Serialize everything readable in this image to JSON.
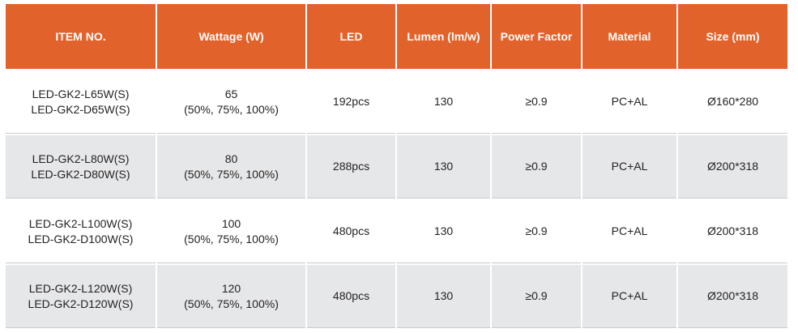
{
  "table": {
    "header": [
      "ITEM NO.",
      "Wattage (W)",
      "LED",
      "Lumen (lm/w)",
      "Power Factor",
      "Material",
      "Size (mm)"
    ],
    "rows": [
      [
        [
          "LED-GK2-L65W(S)",
          "LED-GK2-D65W(S)"
        ],
        [
          "65",
          "(50%, 75%, 100%)"
        ],
        [
          "192pcs"
        ],
        [
          "130"
        ],
        [
          "≥0.9"
        ],
        [
          "PC+AL"
        ],
        [
          "Ø160*280"
        ]
      ],
      [
        [
          "LED-GK2-L80W(S)",
          "LED-GK2-D80W(S)"
        ],
        [
          "80",
          "(50%, 75%, 100%)"
        ],
        [
          "288pcs"
        ],
        [
          "130"
        ],
        [
          "≥0.9"
        ],
        [
          "PC+AL"
        ],
        [
          "Ø200*318"
        ]
      ],
      [
        [
          "LED-GK2-L100W(S)",
          "LED-GK2-D100W(S)"
        ],
        [
          "100",
          "(50%, 75%, 100%)"
        ],
        [
          "480pcs"
        ],
        [
          "130"
        ],
        [
          "≥0.9"
        ],
        [
          "PC+AL"
        ],
        [
          "Ø200*318"
        ]
      ],
      [
        [
          "LED-GK2-L120W(S)",
          "LED-GK2-D120W(S)"
        ],
        [
          "120",
          "(50%, 75%, 100%)"
        ],
        [
          "480pcs"
        ],
        [
          "130"
        ],
        [
          "≥0.9"
        ],
        [
          "PC+AL"
        ],
        [
          "Ø200*318"
        ]
      ]
    ]
  }
}
